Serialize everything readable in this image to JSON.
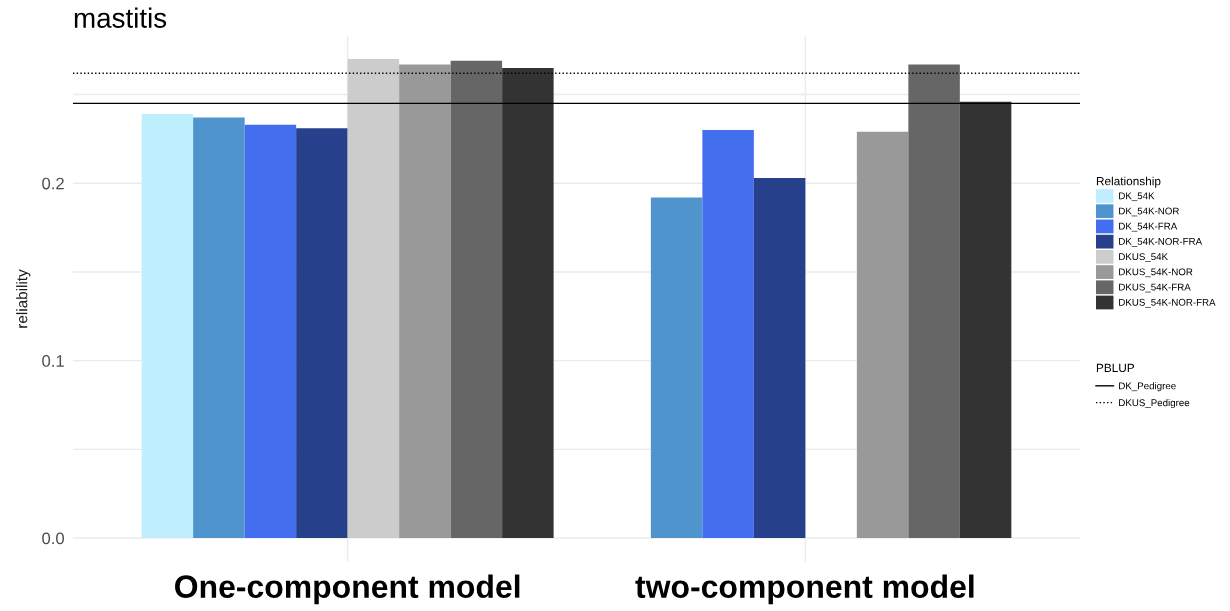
{
  "chart_data": {
    "type": "bar",
    "title": "mastitis",
    "ylabel": "reliability",
    "legend_title": "Relationship",
    "annotations": [
      "PBLUP"
    ],
    "categories": [
      "One-component model",
      "two-component model"
    ],
    "series": [
      {
        "name": "DK_54K",
        "color": "#bfefff",
        "values": [
          0.239,
          null
        ]
      },
      {
        "name": "DK_54K-NOR",
        "color": "#4f94cd",
        "values": [
          0.237,
          0.192
        ]
      },
      {
        "name": "DK_54K-FRA",
        "color": "#436eee",
        "values": [
          0.233,
          0.23
        ]
      },
      {
        "name": "DK_54K-NOR-FRA",
        "color": "#27408b",
        "values": [
          0.231,
          0.203
        ]
      },
      {
        "name": "DKUS_54K",
        "color": "#cccccc",
        "values": [
          0.27,
          null
        ]
      },
      {
        "name": "DKUS_54K-NOR",
        "color": "#999999",
        "values": [
          0.267,
          0.229
        ]
      },
      {
        "name": "DKUS_54K-FRA",
        "color": "#666666",
        "values": [
          0.269,
          0.267
        ]
      },
      {
        "name": "DKUS_54K-NOR-FRA",
        "color": "#333333",
        "values": [
          0.265,
          0.246
        ]
      }
    ],
    "ylim": [
      -0.0135,
      0.283
    ],
    "yticks": [
      {
        "value": 0,
        "label": "0.0"
      },
      {
        "value": 0.05,
        "label": null
      },
      0.1,
      {
        "value": 0.15,
        "label": null
      },
      0.2,
      {
        "value": 0.25,
        "label": null
      }
    ],
    "ref_lines": [
      {
        "axis": "y",
        "value": 0.245,
        "label": "DK_Pedigree",
        "color": "#000000",
        "line_style": "solid"
      },
      {
        "axis": "y",
        "value": 0.262,
        "label": "DKUS_Pedigree",
        "color": "#000000",
        "line_style": "dotted"
      }
    ],
    "grid": true,
    "legend": "right"
  }
}
